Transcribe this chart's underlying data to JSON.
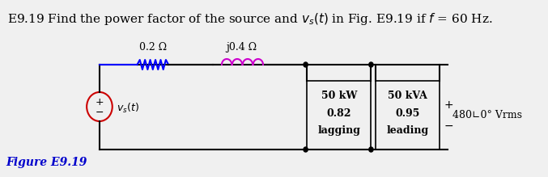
{
  "title": "E9.19 Find the power factor of the source and $v_s(t)$ in Fig. E9.19 if $f$ = 60 Hz.",
  "title_fontsize": 11,
  "figure_label": "Figure E9.19",
  "figure_label_color": "#0000cc",
  "figure_label_fontsize": 10,
  "resistor_label": "0.2 Ω",
  "inductor_label": "j0.4 Ω",
  "load1_lines": [
    "50 kW",
    "0.82",
    "lagging"
  ],
  "load2_lines": [
    "50 kVA",
    "0.95",
    "leading"
  ],
  "voltage_label": "480∟0° Vrms",
  "source_label": "$v_s(t)$",
  "bg_color": "#f0f0f0",
  "wire_color": "#000000",
  "resistor_color": "#0000ff",
  "inductor_color": "#cc00cc",
  "source_circle_color": "#cc0000",
  "box_color": "#000000"
}
